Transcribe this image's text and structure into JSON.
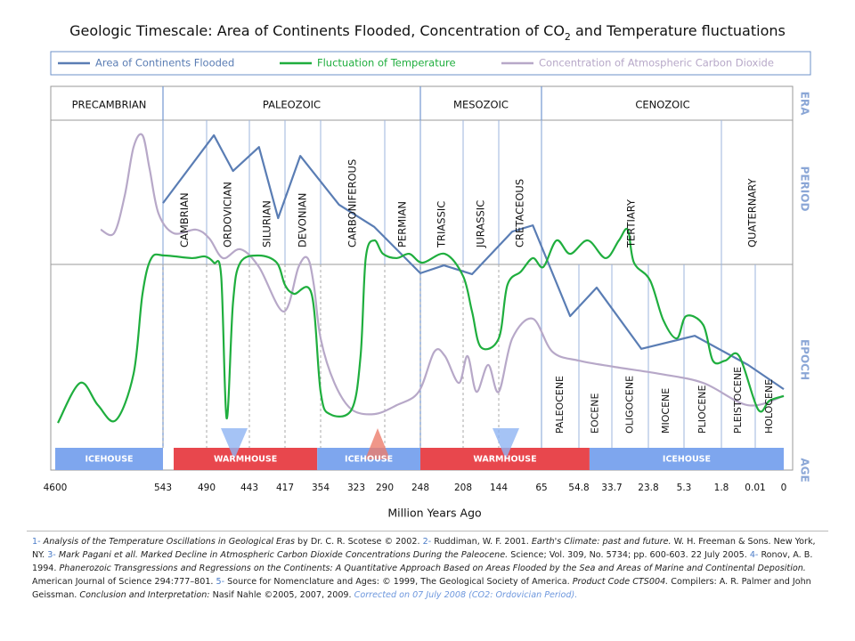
{
  "chart_data": {
    "type": "line",
    "title": {
      "before": "Geologic Timescale: Area of Continents Flooded, Concentration of CO",
      "sub": "2",
      "after": " and Temperature fluctuations"
    },
    "xlabel": "Million Years Ago",
    "xlim": [
      4600,
      0
    ],
    "xticks": [
      4600,
      543,
      490,
      443,
      417,
      354,
      323,
      290,
      248,
      208,
      144,
      65,
      54.8,
      33.7,
      23.8,
      5.3,
      1.8,
      0.01,
      0
    ],
    "ylim": [
      0,
      100
    ],
    "row_labels": [
      "ERA",
      "PERIOD",
      "EPOCH",
      "AGE"
    ],
    "eras": [
      {
        "label": "PRECAMBRIAN",
        "start": 4600,
        "end": 543
      },
      {
        "label": "PALEOZOIC",
        "start": 543,
        "end": 248
      },
      {
        "label": "MESOZOIC",
        "start": 248,
        "end": 65
      },
      {
        "label": "CENOZOIC",
        "start": 65,
        "end": 0
      }
    ],
    "periods": [
      {
        "label": "CAMBRIAN",
        "start": 543,
        "end": 490
      },
      {
        "label": "ORDOVICIAN",
        "start": 490,
        "end": 443
      },
      {
        "label": "SILURIAN",
        "start": 443,
        "end": 417
      },
      {
        "label": "DEVONIAN",
        "start": 417,
        "end": 354
      },
      {
        "label": "CARBONIFEROUS",
        "start": 354,
        "end": 290
      },
      {
        "label": "PERMIAN",
        "start": 290,
        "end": 248
      },
      {
        "label": "TRIASSIC",
        "start": 248,
        "end": 208
      },
      {
        "label": "JURASSIC",
        "start": 208,
        "end": 144
      },
      {
        "label": "CRETACEOUS",
        "start": 144,
        "end": 65
      },
      {
        "label": "TERTIARY",
        "start": 65,
        "end": 1.8
      },
      {
        "label": "QUATERNARY",
        "start": 1.8,
        "end": 0
      }
    ],
    "epochs": [
      {
        "label": "PALEOCENE",
        "start": 65,
        "end": 54.8
      },
      {
        "label": "EOCENE",
        "start": 54.8,
        "end": 33.7
      },
      {
        "label": "OLIGOCENE",
        "start": 33.7,
        "end": 23.8
      },
      {
        "label": "MIOCENE",
        "start": 23.8,
        "end": 5.3
      },
      {
        "label": "PLIOCENE",
        "start": 5.3,
        "end": 1.8
      },
      {
        "label": "PLEISTOCENE",
        "start": 1.8,
        "end": 0.01
      },
      {
        "label": "HOLOCENE",
        "start": 0.01,
        "end": 0
      }
    ],
    "ages": [
      {
        "label": "ICEHOUSE",
        "start": 4600,
        "end": 543,
        "color": "#7ea6ee"
      },
      {
        "label": "WARMHOUSE",
        "start": 530,
        "end": 360,
        "color": "#e8474d"
      },
      {
        "label": "ICEHOUSE",
        "start": 360,
        "end": 248,
        "color": "#7ea6ee"
      },
      {
        "label": "WARMHOUSE",
        "start": 248,
        "end": 48,
        "color": "#e8474d"
      },
      {
        "label": "ICEHOUSE",
        "start": 48,
        "end": 0,
        "color": "#7ea6ee"
      }
    ],
    "series": [
      {
        "name": "Area of Continents Flooded",
        "color": "#5a7db4",
        "x": [
          543,
          482,
          461,
          436,
          422,
          390,
          338,
          302,
          248,
          226,
          192,
          119,
          81,
          57.2,
          43.4,
          25.7,
          4.3,
          0.39,
          0
        ],
        "values": [
          74.7,
          95.4,
          84.5,
          91.8,
          70.1,
          89.1,
          74.2,
          67.4,
          53.3,
          55.7,
          53.0,
          66.0,
          67.9,
          40.2,
          48.9,
          30.2,
          34.2,
          25.3,
          17.9
        ]
      },
      {
        "name": "Fluctuation of Temperature",
        "color": "#1fae3e",
        "x": [
          4499,
          3661,
          2991,
          2320,
          1650,
          1314,
          979,
          541,
          508,
          492,
          482,
          474,
          468,
          461,
          453,
          436,
          423,
          417,
          401,
          370,
          354,
          346,
          327,
          318,
          312,
          302,
          292,
          276,
          261,
          246,
          225,
          208,
          192,
          176,
          144,
          128,
          103,
          81,
          64.5,
          60.9,
          57.2,
          49.1,
          37.7,
          31.8,
          29.4,
          27.7,
          22.9,
          16.0,
          9.0,
          5.1,
          3.5,
          2.6,
          1.6,
          0.86,
          0.009,
          0.005,
          0
        ],
        "values": [
          7.6,
          19.8,
          13.0,
          8.4,
          22.6,
          47.0,
          57.9,
          58.7,
          57.9,
          58.4,
          56.5,
          52.4,
          9.0,
          44.3,
          56.5,
          58.7,
          56.5,
          49.7,
          47.0,
          47.0,
          17.1,
          10.3,
          11.7,
          28.0,
          57.9,
          63.3,
          59.2,
          57.9,
          59.2,
          56.5,
          59.2,
          52.4,
          41.6,
          30.7,
          33.4,
          49.7,
          53.8,
          57.9,
          55.2,
          63.3,
          59.2,
          63.3,
          57.9,
          63.3,
          66.6,
          56.5,
          51.1,
          38.9,
          33.4,
          40.2,
          37.5,
          26.6,
          26.6,
          28.0,
          11.7,
          14.4,
          15.8
        ]
      },
      {
        "name": "Concentration of Atmospheric Carbon Dioxide",
        "color": "#b7a8c8",
        "x": [
          2890,
          2387,
          1985,
          1650,
          1314,
          1046,
          711,
          530,
          503,
          487,
          472,
          453,
          436,
          418,
          393,
          377,
          366,
          354,
          342,
          327,
          302,
          276,
          250,
          235,
          225,
          212,
          200,
          184,
          163,
          144,
          119,
          81,
          62,
          54.8,
          33.0,
          18.3,
          3.5,
          0.39,
          0
        ],
        "values": [
          66.6,
          65.5,
          76.9,
          91.8,
          95.4,
          85.1,
          71.5,
          65.5,
          66.6,
          63.9,
          57.9,
          60.6,
          55.2,
          41.6,
          55.2,
          57.9,
          49.7,
          33.4,
          19.8,
          11.7,
          10.3,
          13.0,
          17.1,
          29.3,
          28.0,
          19.8,
          28.0,
          17.1,
          25.3,
          17.1,
          33.4,
          39.4,
          29.3,
          26.6,
          24.7,
          22.6,
          19.8,
          13.0,
          15.8
        ]
      }
    ]
  },
  "footnote": [
    {
      "text": "1-",
      "style": "blue"
    },
    {
      "text": " Analysis of the Temperature Oscillations in Geological Eras",
      "style": "italic"
    },
    {
      "text": " by Dr. C. R. Scotese © 2002. ",
      "style": "normal"
    },
    {
      "text": "2-",
      "style": "blue"
    },
    {
      "text": " Ruddiman, W. F. 2001. ",
      "style": "normal"
    },
    {
      "text": "Earth's Climate: past and future.",
      "style": "italic"
    },
    {
      "text": " W. H. Freeman & Sons. New York, NY. ",
      "style": "normal"
    },
    {
      "text": "3-",
      "style": "blue"
    },
    {
      "text": " Mark Pagani et all. Marked Decline in Atmospheric Carbon Dioxide Concentrations During the Paleocene.",
      "style": "italic"
    },
    {
      "text": " Science; Vol. 309, No. 5734; pp. 600-603. 22 July 2005. ",
      "style": "normal"
    },
    {
      "text": "4-",
      "style": "blue"
    },
    {
      "text": " Ronov, A. B. 1994. ",
      "style": "normal"
    },
    {
      "text": "Phanerozoic Transgressions and Regressions on the Continents: A Quantitative Approach Based on Areas Flooded by the Sea and Areas of Marine and Continental Deposition.",
      "style": "italic"
    },
    {
      "text": " American Journal of Science 294:777–801. ",
      "style": "normal"
    },
    {
      "text": "5-",
      "style": "blue"
    },
    {
      "text": " Source for Nomenclature and Ages: © 1999, The Geological Society of America. ",
      "style": "normal"
    },
    {
      "text": "Product Code CTS004.",
      "style": "italic"
    },
    {
      "text": " Compilers: A. R. Palmer and John Geissman. ",
      "style": "normal"
    },
    {
      "text": "Conclusion and Interpretation:",
      "style": "italic"
    },
    {
      "text": " Nasif Nahle ©2005, 2007, 2009. ",
      "style": "normal"
    },
    {
      "text": "Corrected on 07 July 2008 (CO2: Ordovician Period).",
      "style": "blue-italic"
    }
  ]
}
